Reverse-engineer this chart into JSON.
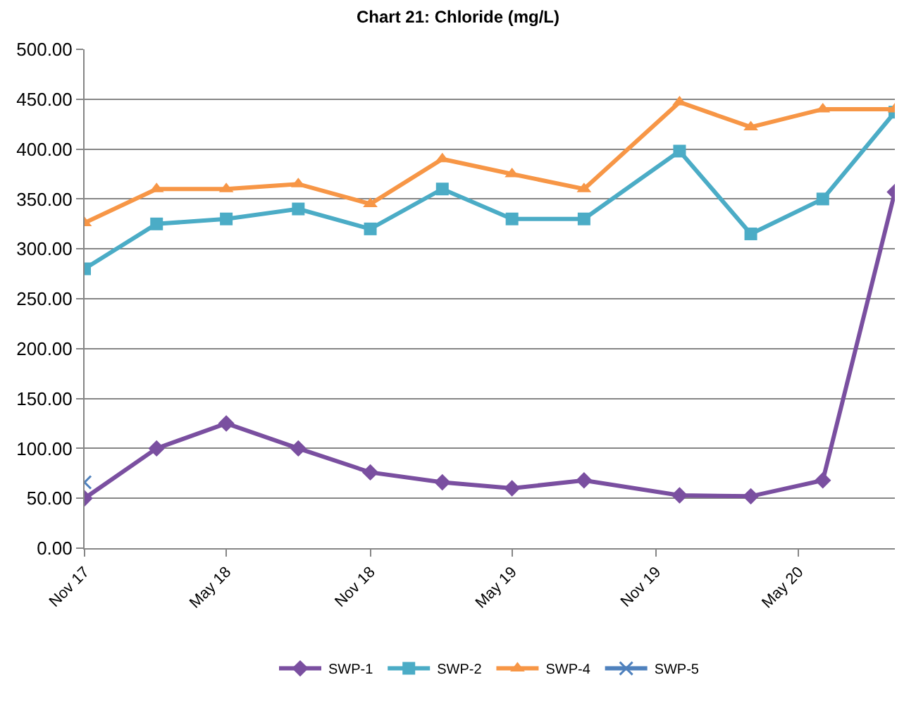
{
  "chart_data": {
    "type": "line",
    "title": "Chart 21: Chloride (mg/L)",
    "x": [
      "2017-11",
      "2018-02",
      "2018-05",
      "2018-08",
      "2018-11",
      "2019-02",
      "2019-05",
      "2019-08",
      "2019-12",
      "2020-03",
      "2020-06",
      "2020-09"
    ],
    "series": [
      {
        "name": "SWP-1",
        "color": "#7a4fa0",
        "marker": "diamond",
        "values": [
          50,
          100,
          125,
          100,
          76,
          66,
          60,
          68,
          53,
          52,
          68,
          357
        ]
      },
      {
        "name": "SWP-2",
        "color": "#4bacc6",
        "marker": "square",
        "values": [
          280,
          325,
          330,
          340,
          320,
          360,
          330,
          330,
          398,
          315,
          350,
          437
        ]
      },
      {
        "name": "SWP-4",
        "color": "#f79646",
        "marker": "triangle",
        "values": [
          326,
          360,
          360,
          365,
          345,
          390,
          375,
          360,
          447,
          422,
          440,
          440
        ]
      },
      {
        "name": "SWP-5",
        "color": "#4f81bd",
        "marker": "cross",
        "values": [
          66,
          null,
          null,
          null,
          null,
          null,
          null,
          null,
          null,
          null,
          null,
          null
        ]
      }
    ],
    "xlim": [
      "2017-11",
      "2020-09"
    ],
    "xticks": [
      {
        "value": "2017-11",
        "label": "Nov 17"
      },
      {
        "value": "2018-05",
        "label": "May 18"
      },
      {
        "value": "2018-11",
        "label": "Nov 18"
      },
      {
        "value": "2019-05",
        "label": "May 19"
      },
      {
        "value": "2019-11",
        "label": "Nov 19"
      },
      {
        "value": "2020-05",
        "label": "May 20"
      }
    ],
    "ylim": [
      0,
      500
    ],
    "yticks": [
      {
        "value": 0,
        "label": "0.00"
      },
      {
        "value": 50,
        "label": "50.00"
      },
      {
        "value": 100,
        "label": "100.00"
      },
      {
        "value": 150,
        "label": "150.00"
      },
      {
        "value": 200,
        "label": "200.00"
      },
      {
        "value": 250,
        "label": "250.00"
      },
      {
        "value": 300,
        "label": "300.00"
      },
      {
        "value": 350,
        "label": "350.00"
      },
      {
        "value": 400,
        "label": "400.00"
      },
      {
        "value": 450,
        "label": "450.00"
      },
      {
        "value": 500,
        "label": "500.00"
      }
    ],
    "grid": "y",
    "legend": "bottom",
    "line_style": "solid"
  }
}
